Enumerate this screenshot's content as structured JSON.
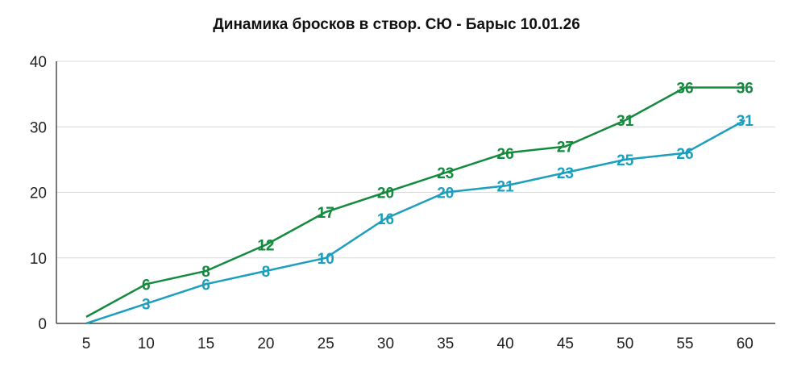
{
  "chart_data": {
    "type": "line",
    "title": "Динамика бросков в створ. СЮ - Барыс 10.01.26",
    "xlabel": "",
    "ylabel": "",
    "x": [
      5,
      10,
      15,
      20,
      25,
      30,
      35,
      40,
      45,
      50,
      55,
      60
    ],
    "ylim": [
      0,
      40
    ],
    "yticks": [
      0,
      10,
      20,
      30,
      40
    ],
    "grid": "horizontal",
    "series": [
      {
        "values": [
          1,
          6,
          8,
          12,
          17,
          20,
          23,
          26,
          27,
          31,
          36,
          36
        ],
        "labels": [
          "",
          "6",
          "8",
          "12",
          "17",
          "20",
          "23",
          "26",
          "27",
          "31",
          "36",
          "36"
        ],
        "color": "#138a3d"
      },
      {
        "values": [
          0,
          3,
          6,
          8,
          10,
          16,
          20,
          21,
          23,
          25,
          26,
          31
        ],
        "labels": [
          "",
          "3",
          "6",
          "8",
          "10",
          "16",
          "20",
          "21",
          "23",
          "25",
          "26",
          "31"
        ],
        "color": "#1b9fbd"
      }
    ]
  }
}
